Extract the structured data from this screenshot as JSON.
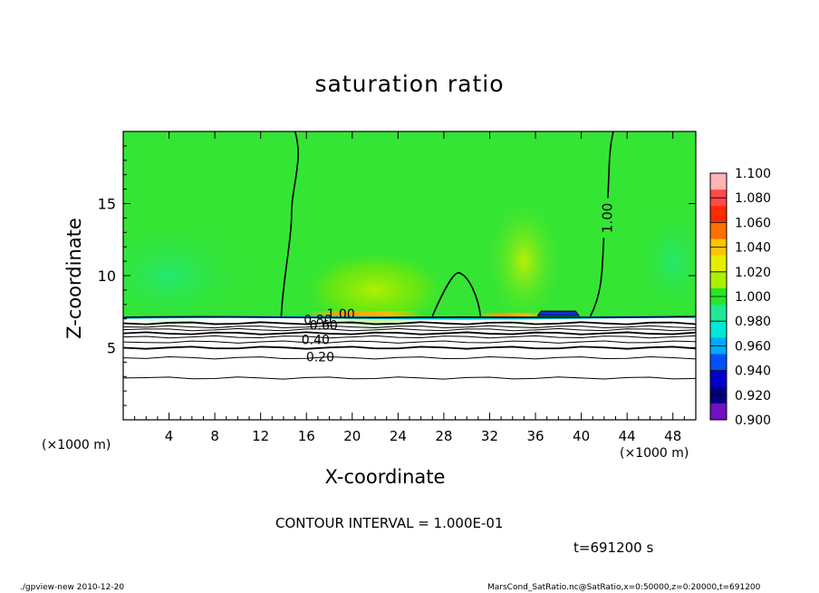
{
  "chart_data": {
    "type": "heatmap",
    "title": "saturation ratio",
    "xlabel": "X-coordinate",
    "ylabel": "Z-coordinate",
    "x_unit_left": "(×1000 m)",
    "x_unit_right": "(×1000 m)",
    "xlim": [
      0,
      50
    ],
    "ylim": [
      0,
      20
    ],
    "x_ticks": [
      4,
      8,
      12,
      16,
      20,
      24,
      28,
      32,
      36,
      40,
      44,
      48
    ],
    "y_ticks": [
      5,
      10,
      15
    ],
    "grid": false,
    "contour_interval_text": "CONTOUR INTERVAL = 1.000E-01",
    "time_text": "t=691200 s",
    "contour_labels": [
      {
        "text": "1.00",
        "x": 42.3,
        "z": 14.0,
        "rotate": -90
      },
      {
        "text": "1.00",
        "x": 19.0,
        "z": 7.3
      },
      {
        "text": "0.80",
        "x": 17.0,
        "z": 6.9
      },
      {
        "text": "0.60",
        "x": 17.5,
        "z": 6.5
      },
      {
        "text": "0.40",
        "x": 16.8,
        "z": 5.5
      },
      {
        "text": "0.20",
        "x": 17.2,
        "z": 4.3
      }
    ],
    "surface_height_z": 7.1,
    "below_surface_contours_z": [
      6.7,
      6.45,
      6.25,
      6.0,
      5.75,
      5.4,
      5.0,
      4.3,
      2.9
    ],
    "colorbar": {
      "levels": [
        "1.100",
        "1.080",
        "1.060",
        "1.040",
        "1.020",
        "1.000",
        "0.980",
        "0.960",
        "0.940",
        "0.920",
        "0.900"
      ],
      "colors": [
        "#ffb4b4",
        "#ff4a4a",
        "#ff2a00",
        "#ff7000",
        "#ffc400",
        "#e3ee00",
        "#aaf000",
        "#28e628",
        "#1ee896",
        "#00e8d8",
        "#00aaff",
        "#0050ff",
        "#0000cc",
        "#000080",
        "#7010c0"
      ]
    }
  },
  "footer": {
    "left": "./gpview-new  2010-12-20",
    "right": "MarsCond_SatRatio.nc@SatRatio,x=0:50000,z=0:20000,t=691200"
  }
}
